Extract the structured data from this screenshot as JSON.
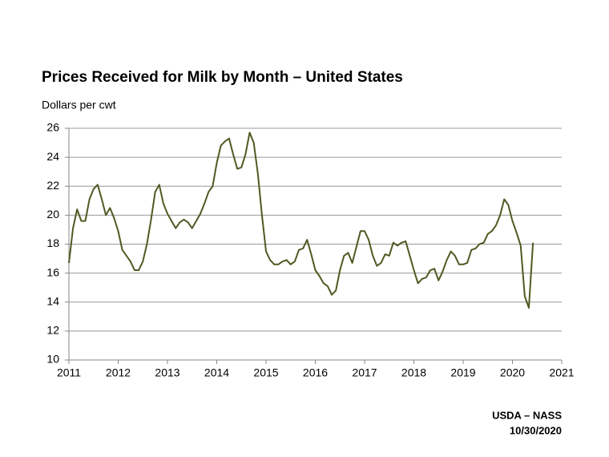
{
  "chart_data": {
    "type": "line",
    "title": "Prices Received for Milk by Month – United States",
    "y_label": "Dollars per cwt",
    "source": "USDA – NASS",
    "date": "10/30/2020",
    "color": "#4e5a22",
    "grid": true,
    "xlim": [
      2011,
      2021
    ],
    "xticks": [
      2011,
      2012,
      2013,
      2014,
      2015,
      2016,
      2017,
      2018,
      2019,
      2020,
      2021
    ],
    "ylim": [
      10,
      26
    ],
    "yticks": [
      10,
      12,
      14,
      16,
      18,
      20,
      22,
      24,
      26
    ],
    "x": [
      2011,
      2011.083,
      2011.167,
      2011.25,
      2011.333,
      2011.417,
      2011.5,
      2011.583,
      2011.667,
      2011.75,
      2011.833,
      2011.917,
      2012,
      2012.083,
      2012.167,
      2012.25,
      2012.333,
      2012.417,
      2012.5,
      2012.583,
      2012.667,
      2012.75,
      2012.833,
      2012.917,
      2013,
      2013.083,
      2013.167,
      2013.25,
      2013.333,
      2013.417,
      2013.5,
      2013.583,
      2013.667,
      2013.75,
      2013.833,
      2013.917,
      2014,
      2014.083,
      2014.167,
      2014.25,
      2014.333,
      2014.417,
      2014.5,
      2014.583,
      2014.667,
      2014.75,
      2014.833,
      2014.917,
      2015,
      2015.083,
      2015.167,
      2015.25,
      2015.333,
      2015.417,
      2015.5,
      2015.583,
      2015.667,
      2015.75,
      2015.833,
      2015.917,
      2016,
      2016.083,
      2016.167,
      2016.25,
      2016.333,
      2016.417,
      2016.5,
      2016.583,
      2016.667,
      2016.75,
      2016.833,
      2016.917,
      2017,
      2017.083,
      2017.167,
      2017.25,
      2017.333,
      2017.417,
      2017.5,
      2017.583,
      2017.667,
      2017.75,
      2017.833,
      2017.917,
      2018,
      2018.083,
      2018.167,
      2018.25,
      2018.333,
      2018.417,
      2018.5,
      2018.583,
      2018.667,
      2018.75,
      2018.833,
      2018.917,
      2019,
      2019.083,
      2019.167,
      2019.25,
      2019.333,
      2019.417,
      2019.5,
      2019.583,
      2019.667,
      2019.75,
      2019.833,
      2019.917,
      2020,
      2020.083,
      2020.167,
      2020.25,
      2020.333,
      2020.417
    ],
    "values": [
      16.7,
      19.1,
      20.4,
      19.6,
      19.6,
      21.1,
      21.8,
      22.1,
      21.1,
      20.0,
      20.5,
      19.8,
      18.9,
      17.6,
      17.2,
      16.8,
      16.2,
      16.2,
      16.8,
      18.0,
      19.7,
      21.6,
      22.1,
      20.8,
      20.1,
      19.6,
      19.1,
      19.5,
      19.7,
      19.5,
      19.1,
      19.6,
      20.1,
      20.8,
      21.6,
      22.0,
      23.6,
      24.8,
      25.1,
      25.3,
      24.2,
      23.2,
      23.3,
      24.2,
      25.7,
      25.0,
      22.9,
      20.0,
      17.5,
      16.9,
      16.6,
      16.6,
      16.8,
      16.9,
      16.6,
      16.8,
      17.6,
      17.7,
      18.3,
      17.3,
      16.2,
      15.8,
      15.3,
      15.1,
      14.5,
      14.8,
      16.2,
      17.2,
      17.4,
      16.7,
      17.8,
      18.9,
      18.9,
      18.3,
      17.2,
      16.5,
      16.7,
      17.3,
      17.2,
      18.1,
      17.9,
      18.1,
      18.2,
      17.2,
      16.2,
      15.3,
      15.6,
      15.7,
      16.2,
      16.3,
      15.5,
      16.1,
      16.9,
      17.5,
      17.2,
      16.6,
      16.6,
      16.7,
      17.6,
      17.7,
      18.0,
      18.1,
      18.7,
      18.9,
      19.3,
      20.0,
      21.1,
      20.7,
      19.6,
      18.8,
      17.9,
      14.4,
      13.6,
      18.1
    ]
  }
}
